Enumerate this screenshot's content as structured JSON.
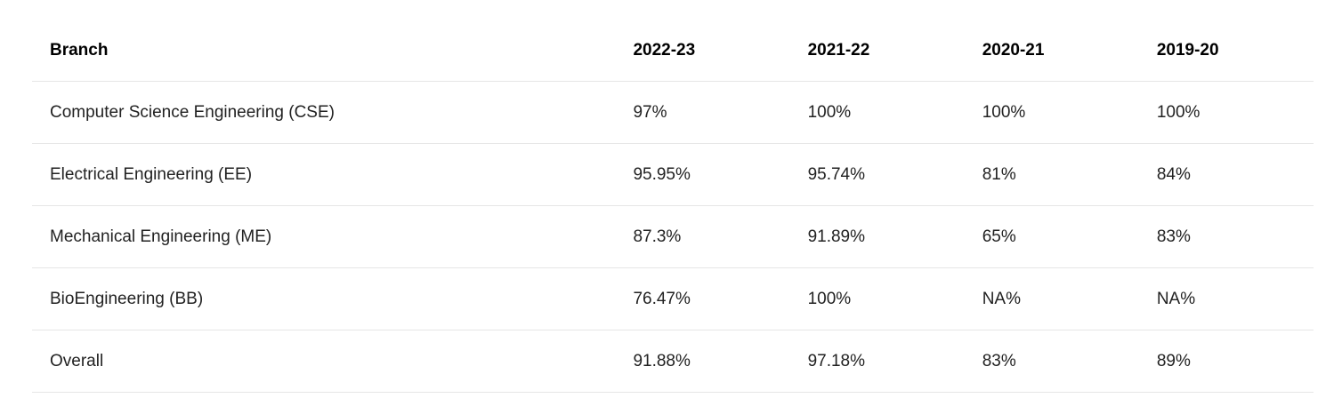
{
  "table": {
    "headers": [
      "Branch",
      "2022-23",
      "2021-22",
      "2020-21",
      "2019-20"
    ],
    "rows": [
      [
        "Computer Science Engineering (CSE)",
        "97%",
        "100%",
        "100%",
        "100%"
      ],
      [
        "Electrical Engineering (EE)",
        "95.95%",
        "95.74%",
        "81%",
        "84%"
      ],
      [
        "Mechanical Engineering (ME)",
        "87.3%",
        "91.89%",
        "65%",
        "83%"
      ],
      [
        "BioEngineering (BB)",
        "76.47%",
        "100%",
        "NA%",
        "NA%"
      ],
      [
        "Overall",
        "91.88%",
        "97.18%",
        "83%",
        "89%"
      ]
    ]
  }
}
